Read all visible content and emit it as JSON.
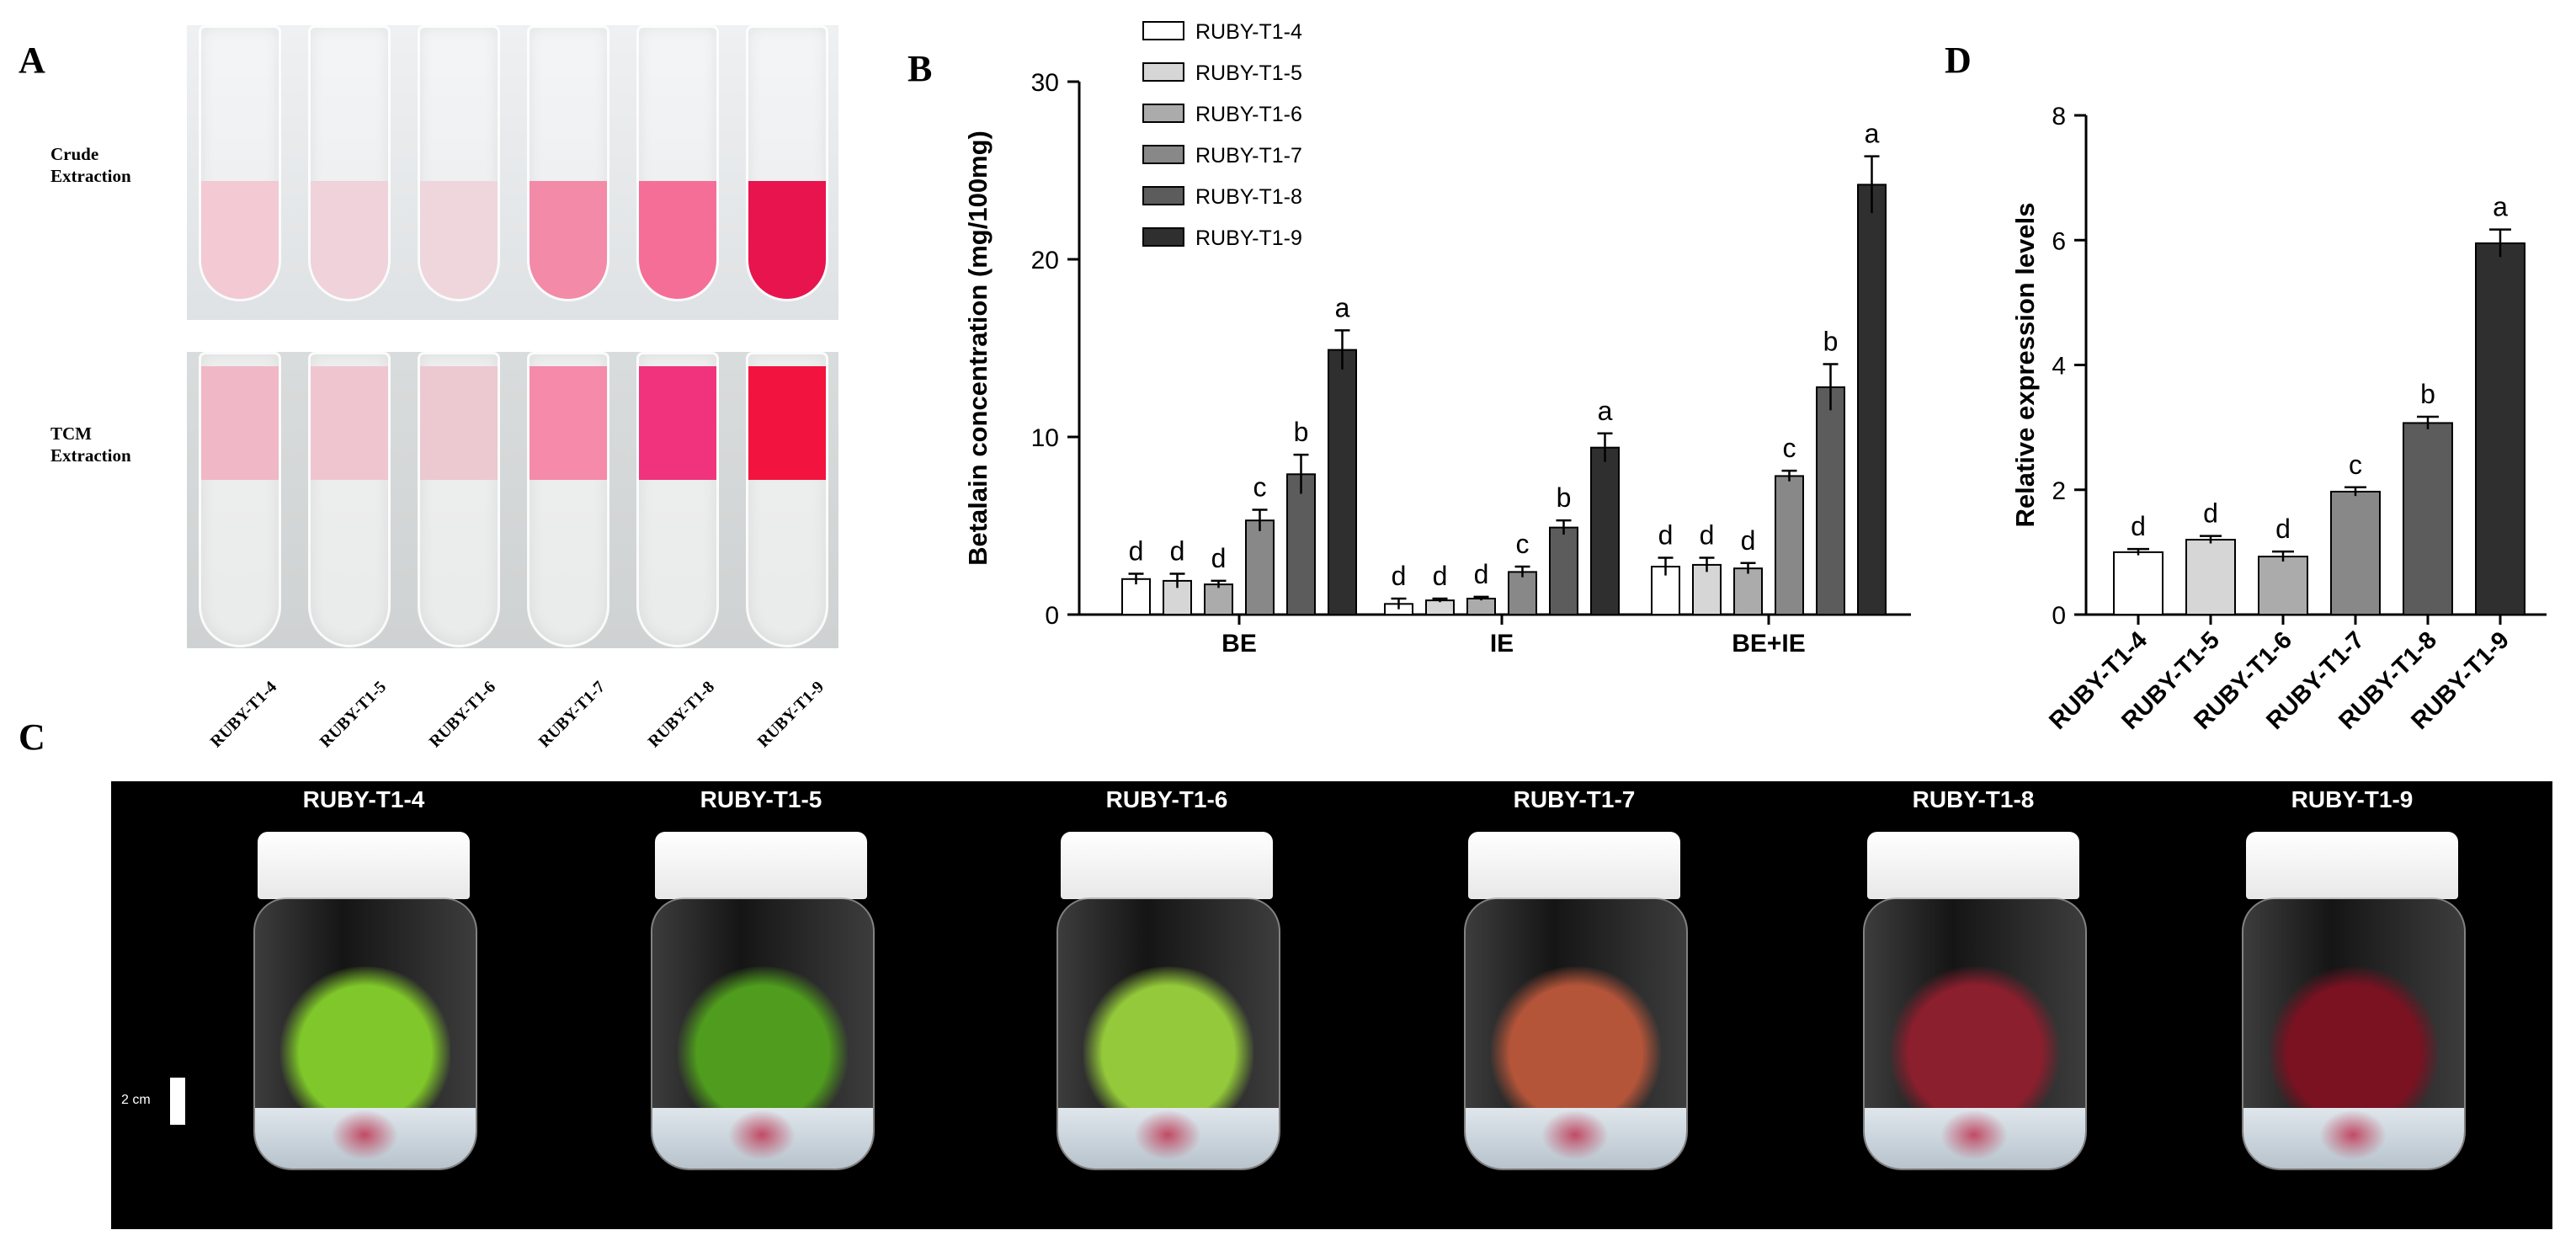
{
  "panels": {
    "A": {
      "letter": "A",
      "row_labels": {
        "crude_line1": "Crude",
        "crude_line2": "Extraction",
        "tcm_line1": "TCM",
        "tcm_line2": "Extraction"
      },
      "tube_labels": [
        "RUBY-T1-4",
        "RUBY-T1-5",
        "RUBY-T1-6",
        "RUBY-T1-7",
        "RUBY-T1-8",
        "RUBY-T1-9"
      ],
      "crude_colors": [
        "#f3c9d3",
        "#efd2da",
        "#efd6dc",
        "#f28aa8",
        "#f56e98",
        "#e8144e"
      ],
      "tcm_colors": [
        "#f0b8c6",
        "#efc6d0",
        "#ecc8d0",
        "#f58aaa",
        "#f0337c",
        "#f2143e"
      ]
    },
    "B": {
      "letter": "B"
    },
    "C": {
      "letter": "C",
      "jar_titles": [
        "RUBY-T1-4",
        "RUBY-T1-5",
        "RUBY-T1-6",
        "RUBY-T1-7",
        "RUBY-T1-8",
        "RUBY-T1-9"
      ],
      "plant_colors": [
        "#7fc72a",
        "#4f9c1e",
        "#93c93a",
        "#b4553a",
        "#8c1f2e",
        "#7a1222"
      ],
      "scale_label": "2 cm"
    },
    "D": {
      "letter": "D"
    }
  },
  "chart_data": [
    {
      "type": "bar",
      "title": "",
      "xlabel": "",
      "ylabel": "Betalain concentration (mg/100mg)",
      "ylim": [
        0,
        30
      ],
      "yticks": [
        "0",
        "10",
        "20",
        "30"
      ],
      "categories": [
        "BE",
        "IE",
        "BE+IE"
      ],
      "legend_position": "top-left",
      "series": [
        {
          "name": "RUBY-T1-4",
          "color": "#ffffff",
          "values": [
            2.0,
            0.6,
            2.7
          ],
          "errors": [
            0.3,
            0.3,
            0.5
          ],
          "letters": [
            "d",
            "d",
            "d"
          ]
        },
        {
          "name": "RUBY-T1-5",
          "color": "#d6d6d6",
          "values": [
            1.9,
            0.8,
            2.8
          ],
          "errors": [
            0.4,
            0.1,
            0.4
          ],
          "letters": [
            "d",
            "d",
            "d"
          ]
        },
        {
          "name": "RUBY-T1-6",
          "color": "#ababab",
          "values": [
            1.7,
            0.9,
            2.6
          ],
          "errors": [
            0.2,
            0.1,
            0.3
          ],
          "letters": [
            "d",
            "d",
            "d"
          ]
        },
        {
          "name": "RUBY-T1-7",
          "color": "#888888",
          "values": [
            5.3,
            2.4,
            7.8
          ],
          "errors": [
            0.6,
            0.3,
            0.3
          ],
          "letters": [
            "c",
            "c",
            "c"
          ]
        },
        {
          "name": "RUBY-T1-8",
          "color": "#5c5c5c",
          "values": [
            7.9,
            4.9,
            12.8
          ],
          "errors": [
            1.1,
            0.4,
            1.3
          ],
          "letters": [
            "b",
            "b",
            "b"
          ]
        },
        {
          "name": "RUBY-T1-9",
          "color": "#2f2f2f",
          "values": [
            14.9,
            9.4,
            24.2
          ],
          "errors": [
            1.1,
            0.8,
            1.6
          ],
          "letters": [
            "a",
            "a",
            "a"
          ]
        }
      ]
    },
    {
      "type": "bar",
      "title": "",
      "xlabel": "",
      "ylabel": "Relative expression levels",
      "ylim": [
        0,
        8
      ],
      "yticks": [
        "0",
        "2",
        "4",
        "6",
        "8"
      ],
      "categories": [
        "RUBY-T1-4",
        "RUBY-T1-5",
        "RUBY-T1-6",
        "RUBY-T1-7",
        "RUBY-T1-8",
        "RUBY-T1-9"
      ],
      "colors": [
        "#ffffff",
        "#d6d6d6",
        "#ababab",
        "#888888",
        "#5c5c5c",
        "#2f2f2f"
      ],
      "values": [
        1.0,
        1.2,
        0.93,
        1.97,
        3.07,
        5.95
      ],
      "errors": [
        0.05,
        0.06,
        0.08,
        0.07,
        0.1,
        0.22
      ],
      "letters": [
        "d",
        "d",
        "d",
        "c",
        "b",
        "a"
      ]
    }
  ]
}
